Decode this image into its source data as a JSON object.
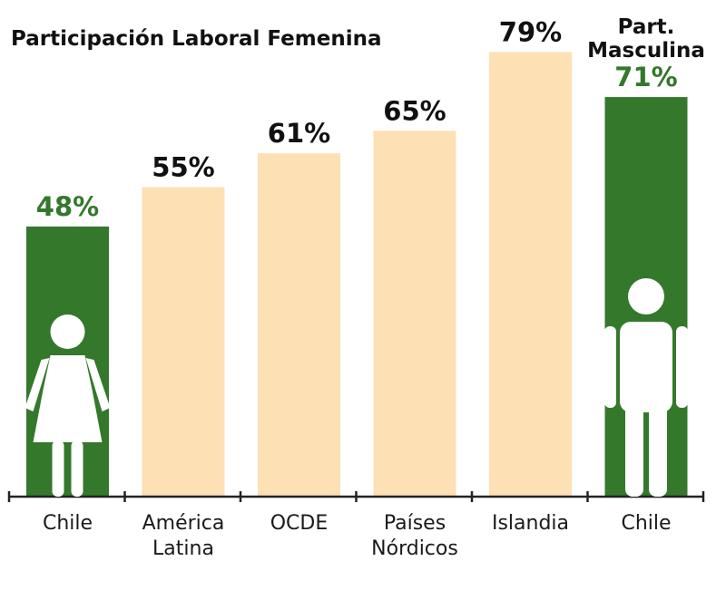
{
  "chart_data": {
    "type": "bar",
    "title": "Participación Laboral Femenina",
    "categories": [
      [
        "Chile"
      ],
      [
        "América",
        "Latina"
      ],
      [
        "OCDE"
      ],
      [
        "Países",
        "Nórdicos"
      ],
      [
        "Islandia"
      ],
      [
        "Chile"
      ]
    ],
    "values": [
      48,
      55,
      61,
      65,
      79,
      71
    ],
    "value_labels": [
      "48%",
      "55%",
      "61%",
      "65%",
      "79%",
      "71%"
    ],
    "bar_colors": [
      "#33782b",
      "#fde0b4",
      "#fde0b4",
      "#fde0b4",
      "#fde0b4",
      "#33782b"
    ],
    "value_label_colors": [
      "#33782b",
      "#111111",
      "#111111",
      "#111111",
      "#111111",
      "#33782b"
    ],
    "extra_header": {
      "bar_index": 5,
      "lines": [
        "Part.",
        "Masculina"
      ]
    },
    "icons": [
      {
        "bar_index": 0,
        "name": "woman-icon"
      },
      {
        "bar_index": 5,
        "name": "man-icon"
      }
    ],
    "ylim": [
      0,
      81
    ],
    "grid": false,
    "legend": "none"
  }
}
